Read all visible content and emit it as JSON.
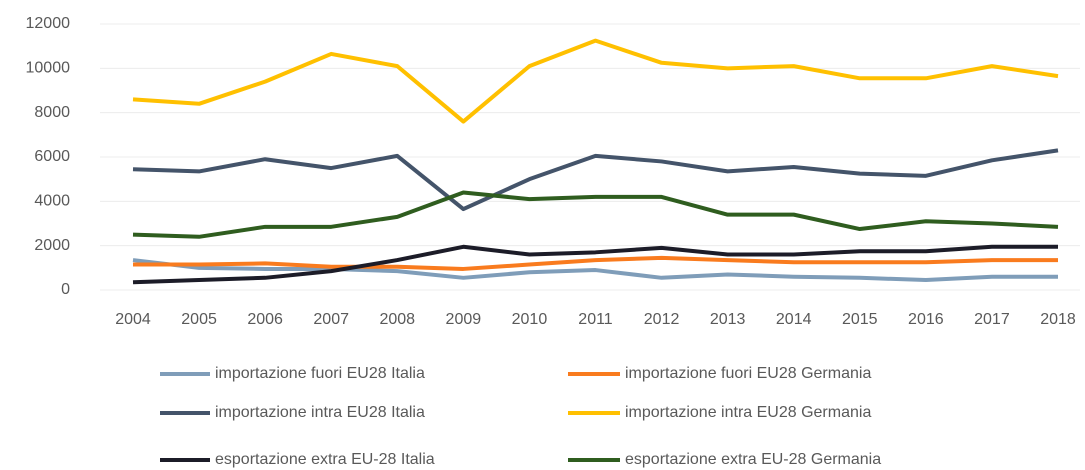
{
  "chart_data": {
    "type": "line",
    "categories": [
      "2004",
      "2005",
      "2006",
      "2007",
      "2008",
      "2009",
      "2010",
      "2011",
      "2012",
      "2013",
      "2014",
      "2015",
      "2016",
      "2017",
      "2018"
    ],
    "series": [
      {
        "name": "importazione fuori EU28 Italia",
        "color": "#7f9db9",
        "values": [
          1350,
          1000,
          950,
          950,
          850,
          550,
          800,
          900,
          550,
          700,
          600,
          550,
          450,
          600,
          600
        ]
      },
      {
        "name": "importazione fuori EU28 Germania",
        "color": "#f97b1e",
        "values": [
          1150,
          1150,
          1200,
          1050,
          1050,
          950,
          1150,
          1350,
          1450,
          1350,
          1250,
          1250,
          1250,
          1350,
          1350
        ]
      },
      {
        "name": "importazione intra EU28 Italia",
        "color": "#44546a",
        "values": [
          5450,
          5350,
          5900,
          5500,
          6050,
          3650,
          5000,
          6050,
          5800,
          5350,
          5550,
          5250,
          5150,
          5850,
          6300
        ]
      },
      {
        "name": "importazione intra EU28 Germania",
        "color": "#ffc000",
        "values": [
          8600,
          8400,
          9400,
          10650,
          10100,
          7600,
          10100,
          11250,
          10250,
          10000,
          10100,
          9550,
          9550,
          10100,
          9650
        ]
      },
      {
        "name": "esportazione extra EU-28 Italia",
        "color": "#1c1c28",
        "values": [
          350,
          450,
          550,
          850,
          1350,
          1950,
          1600,
          1700,
          1900,
          1600,
          1600,
          1750,
          1750,
          1950,
          1950
        ]
      },
      {
        "name": "esportazione extra EU-28 Germania",
        "color": "#2f5d1f",
        "values": [
          2500,
          2400,
          2850,
          2850,
          3300,
          4400,
          4100,
          4200,
          4200,
          3400,
          3400,
          2750,
          3100,
          3000,
          2850
        ]
      }
    ],
    "ylim": [
      0,
      12000
    ],
    "yticks": [
      0,
      2000,
      4000,
      6000,
      8000,
      10000,
      12000
    ],
    "grid": true,
    "legend": "bottom"
  }
}
